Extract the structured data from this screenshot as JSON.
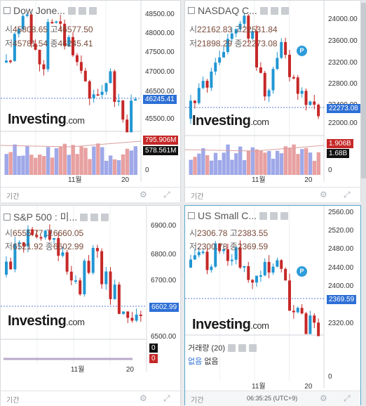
{
  "panels": [
    {
      "id": "dji",
      "title": "Dow Jone...",
      "o_lab": "시",
      "o": "45808.65",
      "h_lab": "고",
      "h": "46577.50",
      "l_lab": "저",
      "l": "45781.54",
      "c_lab": "종",
      "c": "46245.41",
      "price_tag": "46245.41",
      "axis": [
        "48500.00",
        "48000.00",
        "47500.00",
        "47000.00",
        "46500.00",
        "46245.41",
        "45500.00"
      ],
      "vol_tags": [
        "795.906M",
        "578.561M"
      ],
      "vol_axis": [
        "0"
      ],
      "x_label": "11월",
      "x_label2": "20",
      "footer": "기간"
    },
    {
      "id": "nasdaq",
      "title": "NASDAQ C...",
      "o_lab": "시",
      "o": "22162.83",
      "h_lab": "고",
      "h": "22531.84",
      "l_lab": "저",
      "l": "21898.29",
      "c_lab": "종",
      "c": "22273.08",
      "price_tag": "22273.08",
      "axis": [
        "24000.00",
        "23600.00",
        "23200.00",
        "22800.00",
        "22400.00",
        "22000.00"
      ],
      "vol_tags": [
        "1.906B",
        "1.68B"
      ],
      "vol_axis": [
        "0"
      ],
      "x_label": "11월",
      "x_label2": "20",
      "footer": "기간",
      "p_badge": "P"
    },
    {
      "id": "sp500",
      "title": "S&P 500 : 미...",
      "o_lab": "시",
      "o": "6555.77",
      "h_lab": "고",
      "h": "6660.05",
      "l_lab": "저",
      "l": "6521.92",
      "c_lab": "종",
      "c": "6602.99",
      "price_tag": "6602.99",
      "axis": [
        "6900.00",
        "6800.00",
        "6700.00",
        "6602.99",
        "6500.00"
      ],
      "vol_tags": [
        "0",
        "0"
      ],
      "x_label": "11월",
      "x_label2": "20",
      "footer": "기간"
    },
    {
      "id": "russell",
      "title": "US Small C...",
      "o_lab": "시",
      "o": "2306.78",
      "h_lab": "고",
      "h": "2383.55",
      "l_lab": "저",
      "l": "2300.78",
      "c_lab": "종",
      "c": "2369.59",
      "price_tag": "2369.59",
      "axis": [
        "2560.00",
        "2520.00",
        "2480.00",
        "2440.00",
        "2400.00",
        "2369.59",
        "2320.00"
      ],
      "vol_title": "거래량 (20)",
      "vol_none1": "없음",
      "vol_none2": "없음",
      "vol_axis": [
        "0"
      ],
      "x_label": "11월",
      "x_label2": "20",
      "footer": "기간",
      "time": "06:35:25 (UTC+9)",
      "p_badge": "P"
    }
  ],
  "logo": {
    "main": "Investing",
    "suffix": ".com"
  },
  "colors": {
    "up": "#2196d3",
    "down": "#c62828",
    "grid": "#eef0f2",
    "vol_up": "#9fa8e8",
    "vol_down": "#e8a0a0",
    "tag_blue": "#2d6fd6",
    "tag_red": "#c62828",
    "tag_black": "#111111"
  }
}
